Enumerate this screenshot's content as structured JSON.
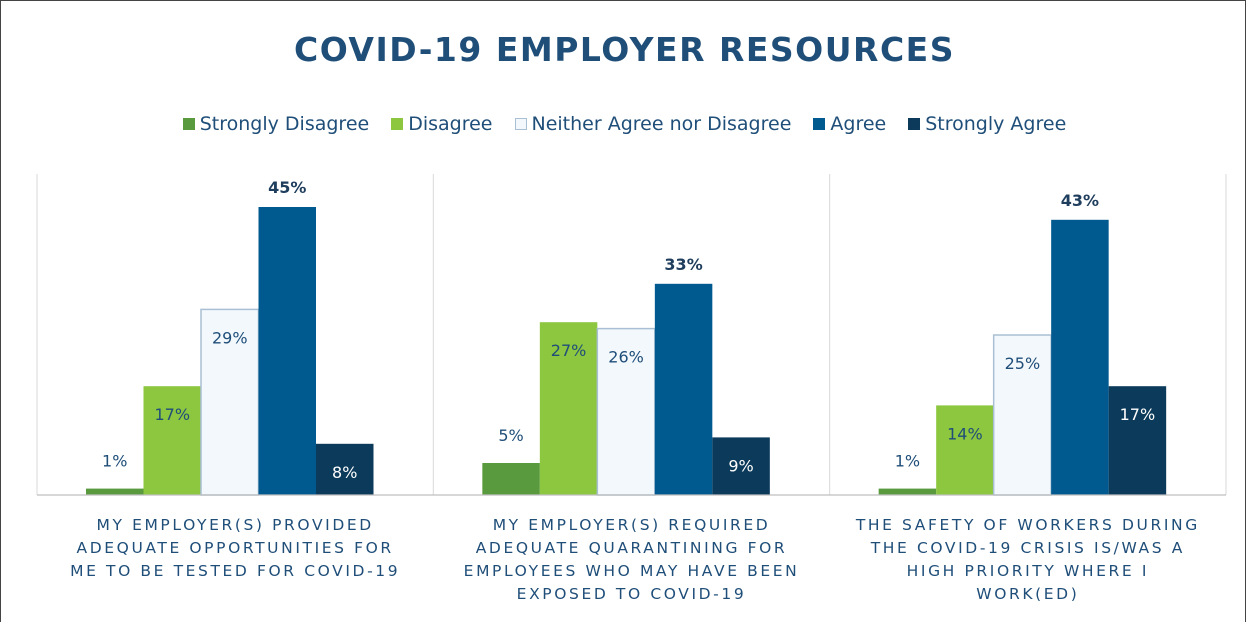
{
  "chart_data": {
    "type": "bar",
    "title": "COVID-19 EMPLOYER RESOURCES",
    "xlabel": "",
    "ylabel": "",
    "ylim": [
      0,
      50
    ],
    "grid": false,
    "legend_position": "top",
    "categories": [
      "MY EMPLOYER(S) PROVIDED ADEQUATE OPPORTUNITIES FOR ME TO BE TESTED FOR COVID-19",
      "MY EMPLOYER(S) REQUIRED ADEQUATE QUARANTINING FOR EMPLOYEES WHO MAY HAVE BEEN EXPOSED TO COVID-19",
      "THE SAFETY OF WORKERS DURING THE COVID-19 CRISIS IS/WAS A HIGH PRIORITY WHERE I WORK(ED)"
    ],
    "category_lines": [
      [
        "MY EMPLOYER(S) PROVIDED",
        "ADEQUATE OPPORTUNITIES FOR",
        "ME TO BE TESTED FOR COVID-19"
      ],
      [
        "MY EMPLOYER(S) REQUIRED",
        "ADEQUATE QUARANTINING FOR",
        "EMPLOYEES WHO MAY HAVE BEEN",
        "EXPOSED TO COVID-19"
      ],
      [
        "THE SAFETY OF WORKERS DURING",
        "THE COVID-19 CRISIS IS/WAS A",
        "HIGH PRIORITY WHERE I",
        "WORK(ED)"
      ]
    ],
    "series": [
      {
        "name": "Strongly Disagree",
        "values": [
          1,
          5,
          1
        ],
        "labels": [
          "1%",
          "5%",
          "1%"
        ],
        "color": "#5a9a3e",
        "label_color": "#1f4e79"
      },
      {
        "name": "Disagree",
        "values": [
          17,
          27,
          14
        ],
        "labels": [
          "17%",
          "27%",
          "14%"
        ],
        "color": "#8dc63f",
        "label_color": "#1f4e79"
      },
      {
        "name": "Neither Agree nor Disagree",
        "values": [
          29,
          26,
          25
        ],
        "labels": [
          "29%",
          "26%",
          "25%"
        ],
        "color": "#f2f8fc",
        "stroke": "#a9bfd3",
        "label_color": "#1f4e79"
      },
      {
        "name": "Agree",
        "values": [
          45,
          33,
          43
        ],
        "labels": [
          "45%",
          "33%",
          "43%"
        ],
        "color": "#005a8f",
        "label_color": "#1f3d5c",
        "label_bold": true
      },
      {
        "name": "Strongly Agree",
        "values": [
          8,
          9,
          17
        ],
        "labels": [
          "8%",
          "9%",
          "17%"
        ],
        "color": "#0c3a5a",
        "label_color": "#ffffff"
      }
    ]
  }
}
